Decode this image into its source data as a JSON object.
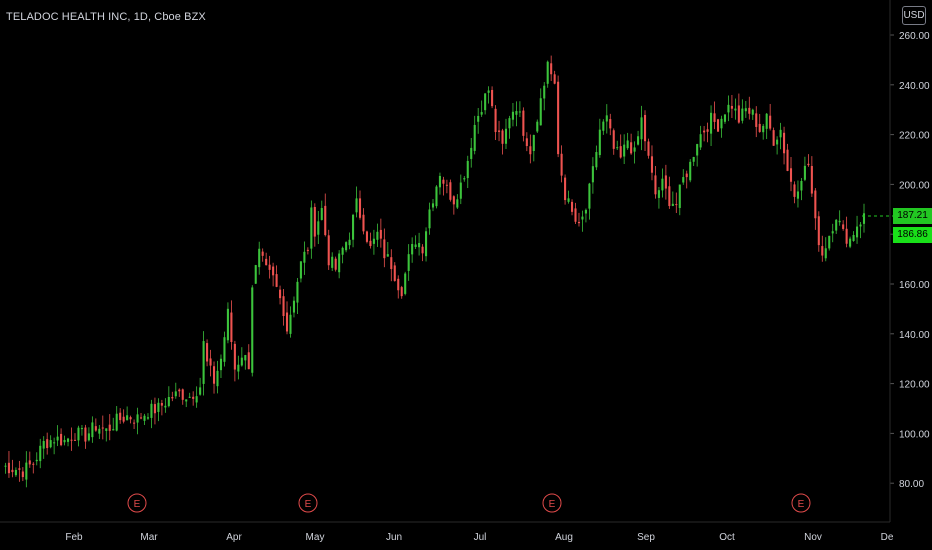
{
  "header": {
    "title": "TELADOC HEALTH INC, 1D, Cboe BZX",
    "currency": "USD"
  },
  "price_badges": {
    "last": "187.21",
    "prev": "186.86"
  },
  "colors": {
    "up": "#26a69a",
    "up_bright": "#3cc43c",
    "down": "#ef5350",
    "axis_text": "#d1d4dc",
    "earnings": "#e14b4b",
    "badge": "#22c722"
  },
  "chart_data": {
    "type": "candlestick",
    "symbol": "TELADOC HEALTH INC",
    "interval": "1D",
    "exchange": "Cboe BZX",
    "ylim": [
      65,
      265
    ],
    "y_ticks": [
      "260.00",
      "240.00",
      "220.00",
      "200.00",
      "180.00",
      "160.00",
      "140.00",
      "120.00",
      "100.00",
      "80.00"
    ],
    "x_ticks": [
      "Feb",
      "Mar",
      "Apr",
      "May",
      "Jun",
      "Jul",
      "Aug",
      "Sep",
      "Oct",
      "Nov",
      "De"
    ],
    "earnings_markers": [
      "E",
      "E",
      "E",
      "E"
    ],
    "last_price": 187.21,
    "prev_price": 186.86,
    "close_path": [
      [
        0,
        87
      ],
      [
        3,
        86
      ],
      [
        6,
        85
      ],
      [
        9,
        88
      ],
      [
        12,
        96
      ],
      [
        15,
        98
      ],
      [
        18,
        97
      ],
      [
        21,
        100
      ],
      [
        24,
        99
      ],
      [
        27,
        103
      ],
      [
        30,
        101
      ],
      [
        33,
        105
      ],
      [
        36,
        107
      ],
      [
        39,
        106
      ],
      [
        42,
        109
      ],
      [
        45,
        110
      ],
      [
        48,
        114
      ],
      [
        51,
        116
      ],
      [
        54,
        115
      ],
      [
        57,
        119
      ],
      [
        58,
        136
      ],
      [
        59,
        128
      ],
      [
        61,
        121
      ],
      [
        63,
        130
      ],
      [
        65,
        148
      ],
      [
        67,
        126
      ],
      [
        69,
        132
      ],
      [
        71,
        128
      ],
      [
        72,
        160
      ],
      [
        74,
        172
      ],
      [
        76,
        165
      ],
      [
        78,
        162
      ],
      [
        79,
        158
      ],
      [
        81,
        150
      ],
      [
        82,
        142
      ],
      [
        84,
        155
      ],
      [
        86,
        168
      ],
      [
        88,
        175
      ],
      [
        89,
        188
      ],
      [
        90,
        182
      ],
      [
        92,
        190
      ],
      [
        94,
        170
      ],
      [
        96,
        166
      ],
      [
        98,
        174
      ],
      [
        100,
        180
      ],
      [
        102,
        192
      ],
      [
        104,
        184
      ],
      [
        106,
        174
      ],
      [
        108,
        180
      ],
      [
        110,
        172
      ],
      [
        112,
        168
      ],
      [
        114,
        160
      ],
      [
        115,
        158
      ],
      [
        117,
        170
      ],
      [
        119,
        178
      ],
      [
        121,
        175
      ],
      [
        123,
        190
      ],
      [
        125,
        200
      ],
      [
        126,
        205
      ],
      [
        128,
        198
      ],
      [
        130,
        194
      ],
      [
        132,
        200
      ],
      [
        134,
        210
      ],
      [
        136,
        224
      ],
      [
        138,
        232
      ],
      [
        140,
        238
      ],
      [
        142,
        222
      ],
      [
        144,
        215
      ],
      [
        146,
        228
      ],
      [
        148,
        232
      ],
      [
        150,
        222
      ],
      [
        152,
        214
      ],
      [
        154,
        228
      ],
      [
        156,
        240
      ],
      [
        157,
        250
      ],
      [
        159,
        238
      ],
      [
        160,
        212
      ],
      [
        162,
        196
      ],
      [
        164,
        188
      ],
      [
        166,
        182
      ],
      [
        168,
        190
      ],
      [
        170,
        205
      ],
      [
        172,
        222
      ],
      [
        174,
        226
      ],
      [
        176,
        214
      ],
      [
        178,
        210
      ],
      [
        180,
        218
      ],
      [
        182,
        212
      ],
      [
        184,
        226
      ],
      [
        186,
        210
      ],
      [
        188,
        196
      ],
      [
        190,
        200
      ],
      [
        192,
        194
      ],
      [
        194,
        192
      ],
      [
        196,
        202
      ],
      [
        198,
        208
      ],
      [
        200,
        218
      ],
      [
        202,
        222
      ],
      [
        204,
        226
      ],
      [
        206,
        224
      ],
      [
        208,
        230
      ],
      [
        210,
        232
      ],
      [
        212,
        226
      ],
      [
        214,
        230
      ],
      [
        216,
        228
      ],
      [
        218,
        222
      ],
      [
        220,
        226
      ],
      [
        222,
        218
      ],
      [
        224,
        222
      ],
      [
        226,
        206
      ],
      [
        228,
        196
      ],
      [
        230,
        204
      ],
      [
        232,
        208
      ],
      [
        234,
        184
      ],
      [
        236,
        172
      ],
      [
        238,
        180
      ],
      [
        240,
        188
      ],
      [
        242,
        180
      ],
      [
        244,
        178
      ],
      [
        246,
        184
      ],
      [
        248,
        187
      ]
    ]
  }
}
